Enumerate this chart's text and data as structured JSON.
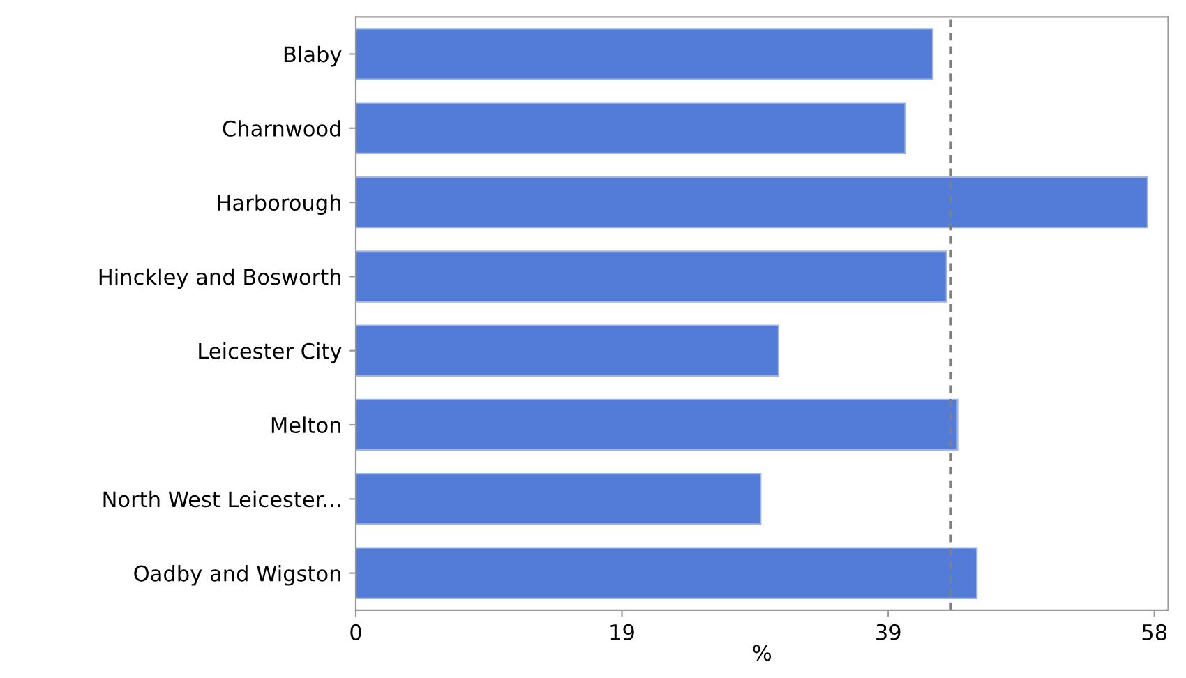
{
  "chart_data": {
    "type": "bar",
    "orientation": "horizontal",
    "xlabel": "%",
    "categories": [
      "Blaby",
      "Charnwood",
      "Harborough",
      "Hinckley and Bosworth",
      "Leicester City",
      "Melton",
      "North West Leicester...",
      "Oadby and Wigston"
    ],
    "values": [
      41.9,
      39.9,
      57.5,
      42.9,
      30.7,
      43.7,
      29.4,
      45.1
    ],
    "color": "#527cd7",
    "xlim": [
      0,
      59
    ],
    "xticks": [
      0,
      {
        "value": 19.33,
        "label": "19"
      },
      {
        "value": 38.67,
        "label": "39"
      },
      58
    ],
    "ref_lines": [
      {
        "axis": "x",
        "value": 43.2,
        "color": "#808080",
        "line_style": "dashed"
      }
    ],
    "grid": false,
    "legend": false
  }
}
